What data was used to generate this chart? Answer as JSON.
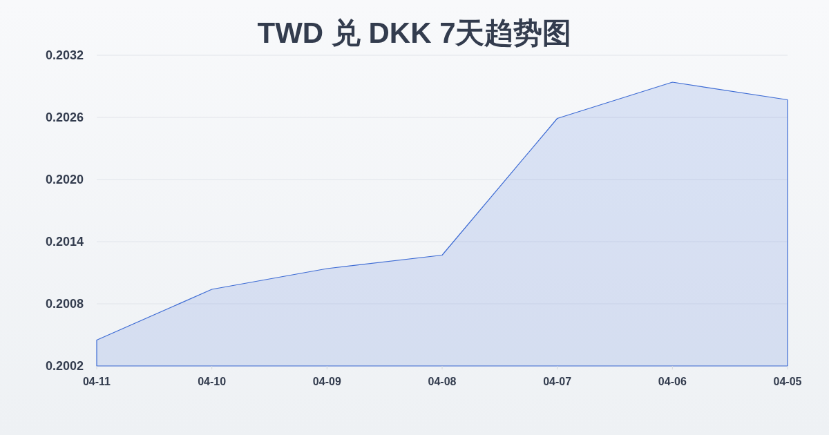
{
  "chart_data": {
    "type": "area",
    "title": "TWD 兑 DKK 7天趋势图",
    "categories": [
      "04-11",
      "04-10",
      "04-09",
      "04-08",
      "04-07",
      "04-06",
      "04-05"
    ],
    "series": [
      {
        "color": "#3d6bd4",
        "values": [
          0.20045,
          0.20094,
          0.20114,
          0.20127,
          0.20259,
          0.20294,
          0.20277
        ]
      }
    ],
    "ylim": [
      0.2002,
      0.2032
    ],
    "yticks": [
      0.2002,
      0.2008,
      0.2014,
      {
        "value": 0.202,
        "label": "0.2020"
      },
      0.2026,
      0.2032
    ],
    "grid": "y"
  }
}
